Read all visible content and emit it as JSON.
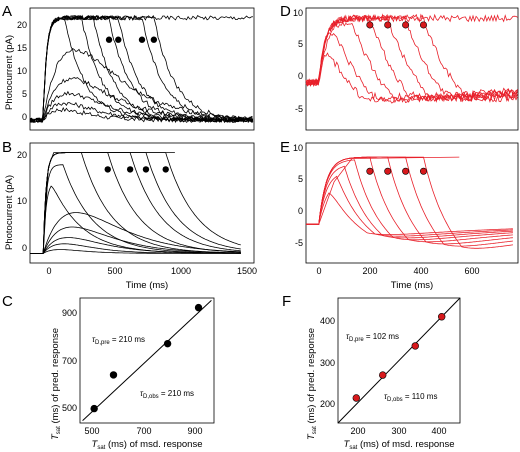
{
  "panels": {
    "A": {
      "letter": "A",
      "ylabel": "Photocurrent (pA)",
      "xlim": [
        -100,
        1600
      ],
      "ylim": [
        -2,
        23
      ],
      "yticks": [
        "0",
        "5",
        "10",
        "15",
        "20"
      ],
      "dots_x": [
        500,
        570,
        750,
        840
      ],
      "dots_y": 16.5
    },
    "B": {
      "letter": "B",
      "ylabel": "Photocurrent (pA)",
      "xlabel": "Time (ms)",
      "xlim": [
        -100,
        1600
      ],
      "ylim": [
        -2,
        23
      ],
      "yticks": [
        "0",
        "10",
        "20"
      ],
      "xticks": [
        "0",
        "500",
        "1000",
        "1500"
      ],
      "dots_x": [
        490,
        660,
        780,
        930
      ],
      "dots_y": 17.5
    },
    "C": {
      "letter": "C",
      "xlim": [
        440,
        960
      ],
      "ylim": [
        440,
        960
      ],
      "ticks": [
        "500",
        "700",
        "900"
      ],
      "xlabel_main": "T",
      "xlabel_sub": "sat",
      "xlabel_rest": " (ms) of msd. response",
      "ylabel_main": "T",
      "ylabel_sub": "sat",
      "ylabel_rest": " (ms) of pred. response",
      "ann_pre_tau": "τ",
      "ann_pre_sub": "D,pre",
      "ann_pre_rest": " = 210 ms",
      "ann_obs_tau": "τ",
      "ann_obs_sub": "D,obs",
      "ann_obs_rest": " = 210 ms"
    },
    "D": {
      "letter": "D",
      "xlim": [
        -50,
        780
      ],
      "ylim": [
        -7,
        11
      ],
      "yticks": [
        "-5",
        "0",
        "5",
        "10"
      ],
      "dots_x": [
        200,
        270,
        340,
        410
      ],
      "dots_y": 8.5
    },
    "E": {
      "letter": "E",
      "xlabel": "Time (ms)",
      "xlim": [
        -50,
        780
      ],
      "ylim": [
        -5.5,
        11.5
      ],
      "yticks": [
        "-5",
        "0",
        "5",
        "10"
      ],
      "xticks": [
        "0",
        "200",
        "400",
        "600"
      ],
      "dots_x": [
        200,
        270,
        340,
        410
      ],
      "dots_y": 7.5
    },
    "F": {
      "letter": "F",
      "xlim": [
        150,
        450
      ],
      "ylim": [
        150,
        450
      ],
      "xticks": [
        "200",
        "300",
        "400"
      ],
      "yticks": [
        "200",
        "300",
        "400"
      ],
      "xlabel_main": "T",
      "xlabel_sub": "sat",
      "xlabel_rest": " (ms) of msd. response",
      "ylabel_main": "T",
      "ylabel_sub": "sat",
      "ylabel_rest": " (ms) of pred. response",
      "ann_pre_tau": "τ",
      "ann_pre_sub": "D,pre",
      "ann_pre_rest": " = 102 ms",
      "ann_obs_tau": "τ",
      "ann_obs_sub": "D,obs",
      "ann_obs_rest": " = 110 ms"
    }
  },
  "colors": {
    "black": "#000000",
    "red": "#e8202a",
    "dot_red": "#d7191c"
  },
  "chart_data": [
    {
      "type": "line",
      "panel": "A",
      "ylabel": "Photocurrent (pA)",
      "x_unit": "ms",
      "series_desc_onset_ms": 0,
      "saturation_times_ms": [
        500,
        570,
        750,
        840
      ],
      "plateau_pA": 21,
      "traces": 11
    },
    {
      "type": "line",
      "panel": "B",
      "ylabel": "Photocurrent (pA)",
      "xlabel": "Time (ms)",
      "saturation_times_ms": [
        490,
        660,
        780,
        930
      ],
      "plateau_pA": 21,
      "traces": 12
    },
    {
      "type": "scatter",
      "panel": "C",
      "x": [
        495,
        570,
        780,
        900
      ],
      "y": [
        500,
        640,
        770,
        920
      ],
      "fit_line": [
        [
          450,
          450
        ],
        [
          950,
          950
        ]
      ]
    },
    {
      "type": "line",
      "panel": "D",
      "saturation_times_ms": [
        200,
        270,
        340,
        410
      ],
      "plateau_pA": 9.5,
      "traces": 9
    },
    {
      "type": "line",
      "panel": "E",
      "xlabel": "Time (ms)",
      "saturation_times_ms": [
        200,
        270,
        340,
        410
      ],
      "plateau_pA": 9.5,
      "traces": 9
    },
    {
      "type": "scatter",
      "panel": "F",
      "x": [
        195,
        260,
        340,
        405
      ],
      "y": [
        210,
        265,
        335,
        405
      ],
      "fit_line": [
        [
          150,
          150
        ],
        [
          450,
          450
        ]
      ]
    }
  ]
}
